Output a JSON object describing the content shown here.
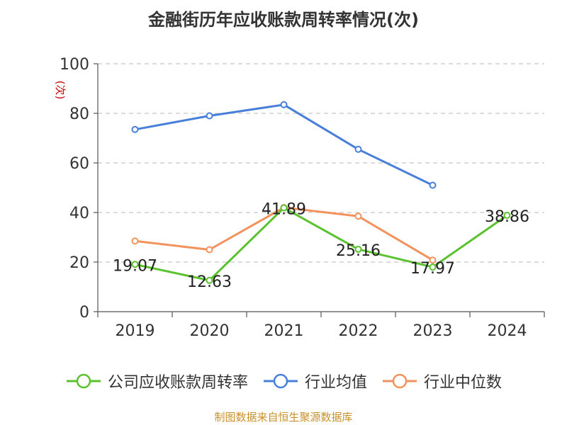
{
  "chart_data": {
    "type": "line",
    "title": "金融街历年应收账款周转率情况(次)",
    "ylabel": "(次)",
    "xlabel": "",
    "categories": [
      "2019",
      "2020",
      "2021",
      "2022",
      "2023",
      "2024"
    ],
    "ylim": [
      0,
      100
    ],
    "yticks": [
      0,
      20,
      40,
      60,
      80,
      100
    ],
    "grid": true,
    "legend_position": "bottom",
    "series": [
      {
        "name": "公司应收账款周转率",
        "color": "#5bc22f",
        "values": [
          19.07,
          12.63,
          41.89,
          25.16,
          17.97,
          38.86
        ],
        "labels": [
          "19.07",
          "12.63",
          "41.89",
          "25.16",
          "17.97",
          "38.86"
        ]
      },
      {
        "name": "行业均值",
        "color": "#4a7fd9",
        "values": [
          73.5,
          79.0,
          83.5,
          65.5,
          51.0,
          null
        ]
      },
      {
        "name": "行业中位数",
        "color": "#f2925d",
        "values": [
          28.5,
          25.0,
          42.0,
          38.5,
          20.8,
          null
        ]
      }
    ]
  },
  "source": "制图数据来自恒生聚源数据库"
}
